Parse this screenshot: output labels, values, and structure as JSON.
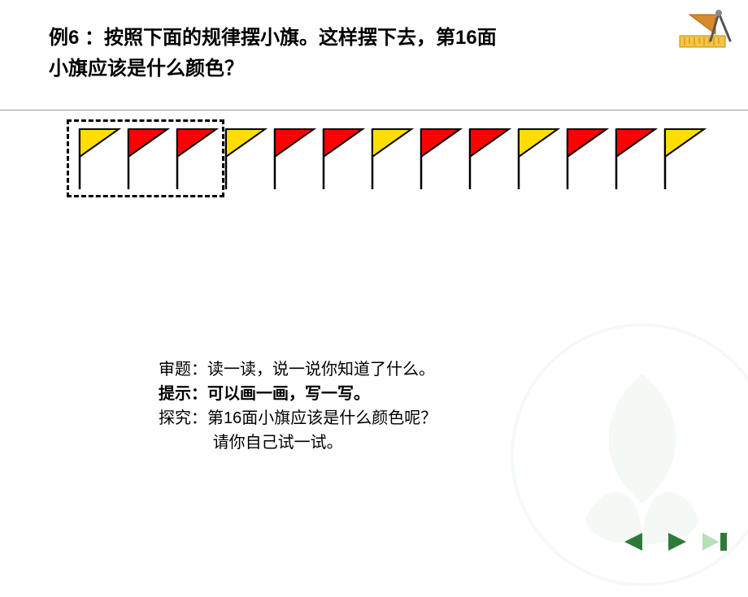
{
  "title": {
    "line1_prefix": "例6 ：",
    "line1_rest": "按照下面的规律摆小旗。这样摆下去，第16面",
    "line2": "小旗应该是什么颜色？"
  },
  "flags": {
    "colors": [
      "#ffdd00",
      "#ff0000",
      "#ff0000",
      "#ffdd00",
      "#ff0000",
      "#ff0000",
      "#ffdd00",
      "#ff0000",
      "#ff0000",
      "#ffdd00",
      "#ff0000",
      "#ff0000",
      "#ffdd00"
    ],
    "stroke": "#000000",
    "stroke_width": 2,
    "pole_height": 78,
    "flag_width": 48,
    "flag_height": 34
  },
  "dashed_box": {
    "covers_first": 3
  },
  "bottom": {
    "l1_label": "审题：",
    "l1_text": "读一读，说一说你知道了什么。",
    "l2_label": "提示：",
    "l2_text": "可以画一画，写一写。",
    "l3_label": "探究：",
    "l3_text": "第16面小旗应该是什么颜色呢？",
    "l4_text": "请你自己试一试。",
    "indent": "            "
  },
  "style": {
    "title_fontsize": 24,
    "body_fontsize": 20,
    "background": "#ffffff",
    "rule_color": "#999999",
    "watermark_color": "#a8c8a8",
    "nav_fill": "#2e7a3a",
    "nav_highlight": "#b8e0b8",
    "deco_colors": {
      "ruler": "#f5c542",
      "square": "#d88a2a",
      "compass": "#555555"
    }
  }
}
